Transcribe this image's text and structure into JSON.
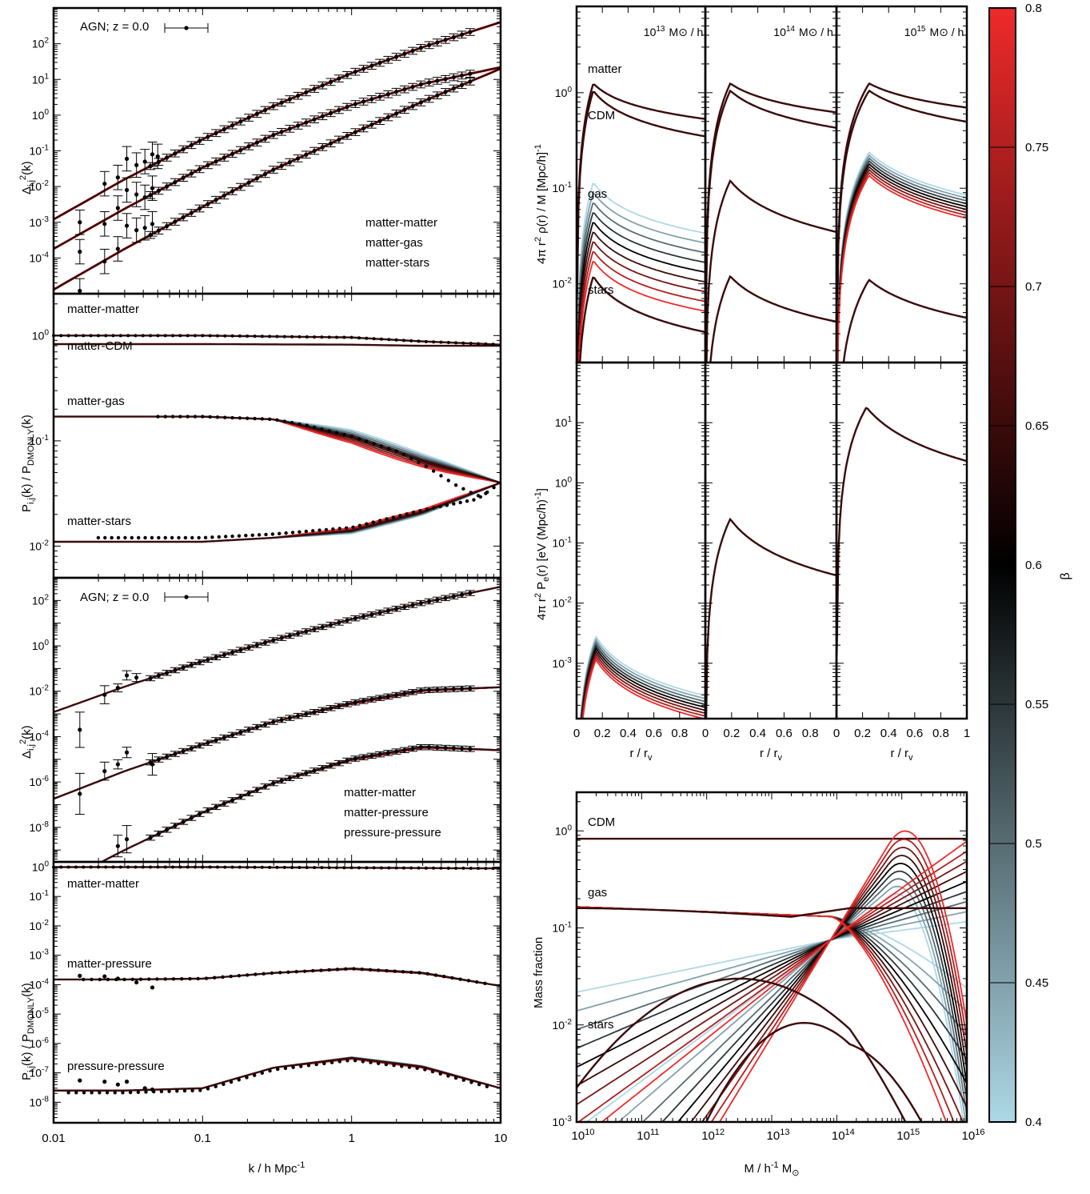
{
  "colorbar": {
    "label": "β",
    "ticks": [
      "0.4",
      "0.45",
      "0.5",
      "0.55",
      "0.6",
      "0.65",
      "0.7",
      "0.75",
      "0.8"
    ],
    "range": [
      0.4,
      0.8
    ],
    "stops": [
      {
        "v": 0.4,
        "color": "#add8e6"
      },
      {
        "v": 0.6,
        "color": "#000000"
      },
      {
        "v": 0.8,
        "color": "#ee2a2a"
      }
    ],
    "betas": [
      0.4,
      0.45,
      0.5,
      0.55,
      0.6,
      0.65,
      0.7,
      0.75,
      0.8
    ]
  },
  "chart_data": [
    {
      "type": "line",
      "panel": "P1",
      "ylabel": "Δ_{i,j}^2(k)",
      "xscale": "log",
      "yscale": "log",
      "xlim": [
        0.01,
        10
      ],
      "ylim": [
        1e-05,
        1000
      ],
      "yticks": [
        {
          "v": 0.0001,
          "m": "10",
          "e": "-4"
        },
        {
          "v": 0.001,
          "m": "10",
          "e": "-3"
        },
        {
          "v": 0.01,
          "m": "10",
          "e": "-2"
        },
        {
          "v": 0.1,
          "m": "10",
          "e": "-1"
        },
        {
          "v": 1,
          "m": "10",
          "e": "0"
        },
        {
          "v": 10,
          "m": "10",
          "e": "1"
        },
        {
          "v": 100,
          "m": "10",
          "e": "2"
        }
      ],
      "legend": "AGN; z = 0.0",
      "labels": [
        "matter-matter",
        "matter-gas",
        "matter-stars"
      ],
      "series": [
        {
          "name": "matter-matter",
          "x": [
            0.01,
            0.03,
            0.1,
            0.3,
            1,
            3,
            10
          ],
          "y": [
            0.0012,
            0.016,
            0.21,
            1.8,
            15,
            80,
            400
          ]
        },
        {
          "name": "matter-gas",
          "x": [
            0.01,
            0.03,
            0.1,
            0.3,
            1,
            3,
            10
          ],
          "y": [
            0.00018,
            0.0024,
            0.034,
            0.28,
            1.9,
            7.5,
            22
          ]
        },
        {
          "name": "matter-stars",
          "x": [
            0.01,
            0.03,
            0.1,
            0.3,
            1,
            3,
            10
          ],
          "y": [
            1.3e-05,
            0.00018,
            0.0027,
            0.03,
            0.3,
            2.4,
            20
          ]
        }
      ],
      "points": [
        {
          "x": 0.015,
          "y": 0.001
        },
        {
          "x": 0.022,
          "y": 0.012
        },
        {
          "x": 0.027,
          "y": 0.018
        },
        {
          "x": 0.031,
          "y": 0.06
        },
        {
          "x": 0.036,
          "y": 0.04
        },
        {
          "x": 0.041,
          "y": 0.05
        },
        {
          "x": 0.046,
          "y": 0.08
        },
        {
          "x": 0.05,
          "y": 0.07
        },
        {
          "x": 0.015,
          "y": 0.00015
        },
        {
          "x": 0.022,
          "y": 0.0009
        },
        {
          "x": 0.027,
          "y": 0.0025
        },
        {
          "x": 0.031,
          "y": 0.008
        },
        {
          "x": 0.036,
          "y": 0.006
        },
        {
          "x": 0.041,
          "y": 0.005
        },
        {
          "x": 0.046,
          "y": 0.009
        },
        {
          "x": 0.015,
          "y": 1.2e-05
        },
        {
          "x": 0.022,
          "y": 8e-05
        },
        {
          "x": 0.027,
          "y": 0.00018
        },
        {
          "x": 0.031,
          "y": 0.0008
        },
        {
          "x": 0.036,
          "y": 0.0006
        },
        {
          "x": 0.041,
          "y": 0.0007
        },
        {
          "x": 0.046,
          "y": 0.0009
        }
      ]
    },
    {
      "type": "line",
      "panel": "P2",
      "ylabel": "P_{i,j}(k) / P_{DMONLY}(k)",
      "xscale": "log",
      "yscale": "log",
      "xlim": [
        0.01,
        10
      ],
      "ylim": [
        0.005,
        2.5
      ],
      "yticks": [
        {
          "v": 0.01,
          "m": "10",
          "e": "-2"
        },
        {
          "v": 0.1,
          "m": "10",
          "e": "-1"
        },
        {
          "v": 1,
          "m": "10",
          "e": "0"
        }
      ],
      "labels": [
        "matter-matter",
        "matter-CDM",
        "matter-gas",
        "matter-stars"
      ],
      "series": [
        {
          "name": "matter-matter",
          "x": [
            0.01,
            0.1,
            1,
            3,
            10
          ],
          "y": [
            1.0,
            1.0,
            0.96,
            0.88,
            0.82
          ]
        },
        {
          "name": "matter-CDM",
          "x": [
            0.01,
            0.1,
            1,
            3,
            10
          ],
          "y": [
            0.83,
            0.83,
            0.82,
            0.8,
            0.8
          ]
        },
        {
          "name": "matter-gas",
          "x": [
            0.01,
            0.1,
            0.3,
            1,
            3,
            10
          ],
          "y": [
            0.17,
            0.17,
            0.16,
            0.11,
            0.065,
            0.04
          ]
        },
        {
          "name": "matter-stars",
          "x": [
            0.01,
            0.1,
            0.3,
            1,
            3,
            10
          ],
          "y": [
            0.011,
            0.011,
            0.012,
            0.014,
            0.021,
            0.04
          ]
        }
      ],
      "points_gas": {
        "x": [
          0.3,
          0.5,
          1,
          2,
          3,
          5,
          7,
          10
        ],
        "y": [
          0.16,
          0.14,
          0.11,
          0.08,
          0.06,
          0.038,
          0.03,
          0.035
        ]
      },
      "points_stars": {
        "x": [
          0.02,
          0.05,
          0.1,
          0.3,
          1,
          3,
          7
        ],
        "y": [
          0.012,
          0.012,
          0.012,
          0.013,
          0.015,
          0.022,
          0.028
        ]
      }
    },
    {
      "type": "line",
      "panel": "P3",
      "ylabel": "Δ_{i,j}^2(k)",
      "xscale": "log",
      "yscale": "log",
      "xlim": [
        0.01,
        10
      ],
      "ylim": [
        3e-10,
        1000
      ],
      "yticks": [
        {
          "v": 1e-08,
          "m": "10",
          "e": "-8"
        },
        {
          "v": 1e-06,
          "m": "10",
          "e": "-6"
        },
        {
          "v": 0.0001,
          "m": "10",
          "e": "-4"
        },
        {
          "v": 0.01,
          "m": "10",
          "e": "-2"
        },
        {
          "v": 1,
          "m": "10",
          "e": "0"
        },
        {
          "v": 100,
          "m": "10",
          "e": "2"
        }
      ],
      "legend": "AGN; z = 0.0",
      "labels": [
        "matter-matter",
        "matter-pressure",
        "pressure-pressure"
      ],
      "series": [
        {
          "name": "matter-matter",
          "x": [
            0.01,
            0.03,
            0.1,
            0.3,
            1,
            3,
            10
          ],
          "y": [
            0.0012,
            0.016,
            0.21,
            1.8,
            15,
            80,
            400
          ]
        },
        {
          "name": "matter-pressure",
          "x": [
            0.01,
            0.03,
            0.1,
            0.3,
            1,
            3,
            10
          ],
          "y": [
            1.8e-07,
            3e-06,
            4.5e-05,
            0.00045,
            0.003,
            0.011,
            0.015
          ]
        },
        {
          "name": "pressure-pressure",
          "x": [
            0.01,
            0.03,
            0.1,
            0.3,
            1,
            3,
            10
          ],
          "y": [
            2.5e-11,
            1e-09,
            4.5e-08,
            9e-07,
            1e-05,
            3.5e-05,
            2.5e-05
          ]
        }
      ]
    },
    {
      "type": "line",
      "panel": "P4",
      "ylabel": "P_{i,j}(k) / P_{DMONLY}(k)",
      "xlabel": "k / h Mpc^-1",
      "xscale": "log",
      "yscale": "log",
      "xlim": [
        0.01,
        10
      ],
      "ylim": [
        2e-09,
        1.5
      ],
      "xticks": [
        "0.01",
        "0.1",
        "1",
        "10"
      ],
      "yticks": [
        {
          "v": 1e-08,
          "m": "10",
          "e": "-8"
        },
        {
          "v": 1e-07,
          "m": "10",
          "e": "-7"
        },
        {
          "v": 1e-06,
          "m": "10",
          "e": "-6"
        },
        {
          "v": 1e-05,
          "m": "10",
          "e": "-5"
        },
        {
          "v": 0.0001,
          "m": "10",
          "e": "-4"
        },
        {
          "v": 0.001,
          "m": "10",
          "e": "-3"
        },
        {
          "v": 0.01,
          "m": "10",
          "e": "-2"
        },
        {
          "v": 0.1,
          "m": "10",
          "e": "-1"
        },
        {
          "v": 1,
          "m": "10",
          "e": "0"
        }
      ],
      "labels": [
        "matter-matter",
        "matter-pressure",
        "pressure-pressure"
      ],
      "series": [
        {
          "name": "matter-matter",
          "x": [
            0.01,
            0.1,
            1,
            10
          ],
          "y": [
            1.0,
            1.0,
            0.95,
            0.9
          ]
        },
        {
          "name": "matter-pressure",
          "x": [
            0.01,
            0.03,
            0.1,
            0.3,
            1,
            3,
            10
          ],
          "y": [
            0.00015,
            0.00015,
            0.00016,
            0.00025,
            0.00035,
            0.00025,
            9e-05
          ]
        },
        {
          "name": "pressure-pressure",
          "x": [
            0.01,
            0.03,
            0.1,
            0.3,
            1,
            3,
            10
          ],
          "y": [
            2.5e-08,
            2.5e-08,
            3e-08,
            1.5e-07,
            3.2e-07,
            1.6e-07,
            3e-08
          ]
        }
      ]
    },
    {
      "type": "line",
      "panel": "halo-density",
      "ylabel": "4π r^2 ρ(r) / M [Mpc/h]^-1",
      "columns": [
        "13",
        "14",
        "15"
      ],
      "column_label_suffix": "M⊙ / h",
      "xlim": [
        0,
        1
      ],
      "ylim": [
        0.0015,
        8
      ],
      "yscale": "log",
      "yticks": [
        {
          "v": 0.01,
          "m": "10",
          "e": "-2"
        },
        {
          "v": 0.1,
          "m": "10",
          "e": "-1"
        },
        {
          "v": 1,
          "m": "10",
          "e": "0"
        }
      ],
      "labels": [
        "matter",
        "CDM",
        "gas",
        "stars"
      ],
      "peaks": {
        "matter": [
          1.25,
          1.25,
          1.25
        ],
        "CDM": [
          1.05,
          1.05,
          1.05
        ],
        "gas": [
          0.045,
          0.12,
          0.18
        ],
        "stars": [
          0.012,
          0.012,
          0.011
        ]
      }
    },
    {
      "type": "line",
      "panel": "halo-pressure",
      "ylabel": "4π r^2 P_e(r) [eV (Mpc/h)^-1]",
      "xlabel": "r / r_v",
      "xlim": [
        0,
        1
      ],
      "ylim": [
        0.00012,
        100
      ],
      "yscale": "log",
      "xticks": [
        "0",
        "0.2",
        "0.4",
        "0.6",
        "0.8",
        "1"
      ],
      "yticks": [
        {
          "v": 0.001,
          "m": "10",
          "e": "-3"
        },
        {
          "v": 0.01,
          "m": "10",
          "e": "-2"
        },
        {
          "v": 0.1,
          "m": "10",
          "e": "-1"
        },
        {
          "v": 1,
          "m": "10",
          "e": "0"
        },
        {
          "v": 10,
          "m": "10",
          "e": "1"
        }
      ],
      "peaks": [
        0.0018,
        0.25,
        18
      ]
    },
    {
      "type": "line",
      "panel": "mass-fraction",
      "ylabel": "Mass fraction",
      "xlabel": "M / h^-1 M⊙",
      "xscale": "log",
      "yscale": "log",
      "xlim": [
        10000000000.0,
        1e+16
      ],
      "ylim": [
        0.001,
        2.5
      ],
      "xticks": [
        {
          "m": "10",
          "e": "10"
        },
        {
          "m": "10",
          "e": "11"
        },
        {
          "m": "10",
          "e": "12"
        },
        {
          "m": "10",
          "e": "13"
        },
        {
          "m": "10",
          "e": "14"
        },
        {
          "m": "10",
          "e": "15"
        },
        {
          "m": "10",
          "e": "16"
        }
      ],
      "yticks": [
        {
          "v": 0.001,
          "m": "10",
          "e": "-3"
        },
        {
          "v": 0.01,
          "m": "10",
          "e": "-2"
        },
        {
          "v": 0.1,
          "m": "10",
          "e": "-1"
        },
        {
          "v": 1,
          "m": "10",
          "e": "0"
        }
      ],
      "labels": [
        "CDM",
        "gas",
        "stars"
      ],
      "cdm_fraction": 0.83,
      "gas_max": 0.165,
      "cross_point": {
        "x": 80000000000000.0,
        "y": 0.075
      }
    }
  ]
}
